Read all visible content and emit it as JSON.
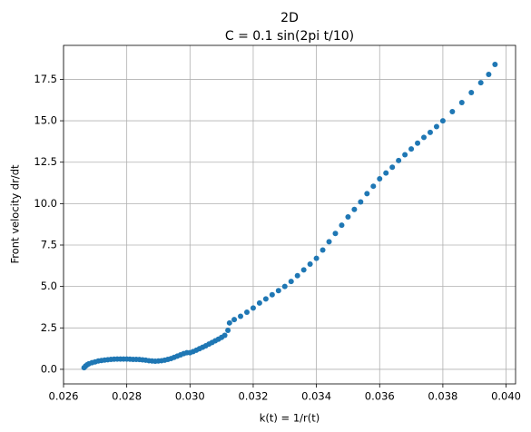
{
  "chart_data": {
    "type": "scatter",
    "title": "2D",
    "subtitle": "C = 0.1 sin(2pi t/10)",
    "x_label": "k(t) = 1/r(t)",
    "y_label": "Front velocity dr/dt",
    "color": "#1f77b4",
    "grid": true,
    "xlim": [
      0.026,
      0.0403
    ],
    "ylim": [
      -0.88,
      19.55
    ],
    "xticks": [
      0.026,
      0.028,
      {
        "value": 0.03,
        "label": "0.030"
      },
      0.032,
      0.034,
      0.036,
      0.038,
      {
        "value": 0.04,
        "label": "0.040"
      }
    ],
    "yticks": [
      {
        "value": 0,
        "label": "0.0"
      },
      2.5,
      {
        "value": 5,
        "label": "5.0"
      },
      7.5,
      {
        "value": 10,
        "label": "10.0"
      },
      12.5,
      {
        "value": 15,
        "label": "15.0"
      },
      17.5
    ],
    "x": [
      0.02665,
      0.0267,
      0.02675,
      0.0268,
      0.0269,
      0.027,
      0.0271,
      0.0272,
      0.0273,
      0.0274,
      0.0275,
      0.0276,
      0.0277,
      0.0278,
      0.0279,
      0.028,
      0.0281,
      0.0282,
      0.0283,
      0.0284,
      0.0285,
      0.0286,
      0.0287,
      0.0288,
      0.0289,
      0.029,
      0.0291,
      0.0292,
      0.0293,
      0.0294,
      0.0295,
      0.0296,
      0.0297,
      0.0298,
      0.0299,
      0.03,
      0.0301,
      0.0302,
      0.0303,
      0.0304,
      0.0305,
      0.0306,
      0.0307,
      0.0308,
      0.0309,
      0.031,
      0.0311,
      0.0312,
      0.03125,
      0.0314,
      0.0316,
      0.0318,
      0.032,
      0.0322,
      0.0324,
      0.0326,
      0.0328,
      0.033,
      0.0332,
      0.0334,
      0.0336,
      0.0338,
      0.034,
      0.0342,
      0.0344,
      0.0346,
      0.0348,
      0.035,
      0.0352,
      0.0354,
      0.0356,
      0.0358,
      0.036,
      0.0362,
      0.0364,
      0.0366,
      0.0368,
      0.037,
      0.0372,
      0.0374,
      0.0376,
      0.0378,
      0.038,
      0.0383,
      0.0386,
      0.0389,
      0.0392,
      0.03945,
      0.03965
    ],
    "values": [
      0.1,
      0.2,
      0.28,
      0.33,
      0.4,
      0.45,
      0.5,
      0.53,
      0.56,
      0.58,
      0.6,
      0.61,
      0.62,
      0.62,
      0.62,
      0.62,
      0.61,
      0.6,
      0.6,
      0.59,
      0.57,
      0.55,
      0.52,
      0.5,
      0.49,
      0.5,
      0.52,
      0.55,
      0.6,
      0.65,
      0.72,
      0.8,
      0.87,
      0.95,
      1.0,
      1.0,
      1.07,
      1.15,
      1.24,
      1.33,
      1.42,
      1.52,
      1.62,
      1.72,
      1.82,
      1.93,
      2.05,
      2.35,
      2.8,
      3.0,
      3.2,
      3.45,
      3.7,
      4.0,
      4.25,
      4.5,
      4.75,
      5.0,
      5.3,
      5.65,
      6.0,
      6.35,
      6.7,
      7.2,
      7.7,
      8.2,
      8.7,
      9.2,
      9.65,
      10.1,
      10.6,
      11.05,
      11.5,
      11.85,
      12.2,
      12.6,
      12.95,
      13.3,
      13.65,
      14.0,
      14.3,
      14.65,
      15.0,
      15.55,
      16.1,
      16.7,
      17.3,
      17.8,
      18.4
    ]
  }
}
